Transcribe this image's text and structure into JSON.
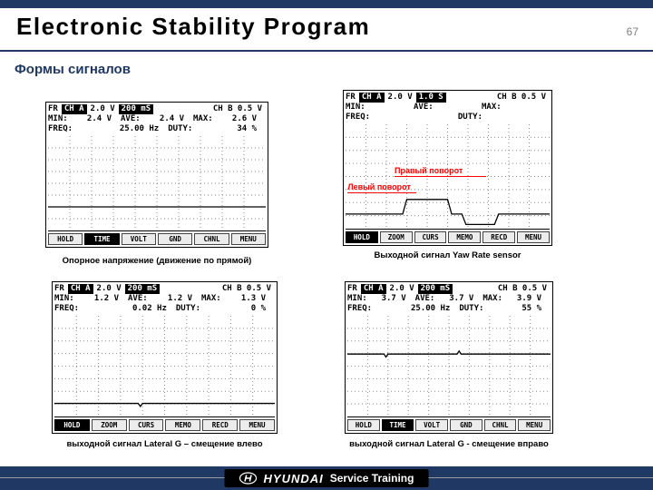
{
  "slide": {
    "title": "Electronic Stability Program",
    "page_number": "67",
    "section_title": "Формы сигналов"
  },
  "footer": {
    "brand": "HYUNDAI",
    "suffix": "Service Training"
  },
  "scope_labels": {
    "min": "MIN:",
    "ave": "AVE:",
    "max": "MAX:",
    "freq": "FREQ:",
    "duty": "DUTY:"
  },
  "scopes": [
    {
      "prefix": "FR",
      "ch_a": "CH A",
      "ch_a_scale": "2.0 V",
      "timebase": "200 mS",
      "ch_b": "CH B 0.5 V",
      "min": "2.4 V",
      "ave": "2.4 V",
      "max": "2.6 V",
      "freq": "25.00 Hz",
      "duty": "34 %",
      "buttons": [
        {
          "label": "HOLD",
          "active": false
        },
        {
          "label": "TIME",
          "active": true
        },
        {
          "label": "VOLT",
          "active": false
        },
        {
          "label": "GND",
          "active": false
        },
        {
          "label": "CHNL",
          "active": false
        },
        {
          "label": "MENU",
          "active": false
        }
      ],
      "caption": "Опорное напряжение (движение по прямой)",
      "waveform": [
        [
          0,
          75
        ],
        [
          100,
          75
        ]
      ]
    },
    {
      "prefix": "FR",
      "ch_a": "CH A",
      "ch_a_scale": "2.0 V",
      "timebase": "1.0 S",
      "ch_b": "CH B 0.5 V",
      "min": "",
      "ave": "",
      "max": "",
      "freq": "",
      "duty": "",
      "buttons": [
        {
          "label": "HOLD",
          "active": true
        },
        {
          "label": "ZOOM",
          "active": false
        },
        {
          "label": "CURS",
          "active": false
        },
        {
          "label": "MEMO",
          "active": false
        },
        {
          "label": "RECD",
          "active": false
        },
        {
          "label": "MENU",
          "active": false
        }
      ],
      "caption": "Выходной сигнал Yaw Rate sensor",
      "annotations": [
        {
          "text": "Правый поворот"
        },
        {
          "text": "Левый поворот"
        }
      ],
      "waveform": [
        [
          0,
          86
        ],
        [
          28,
          86
        ],
        [
          30,
          72
        ],
        [
          50,
          72
        ],
        [
          52,
          86
        ],
        [
          57,
          86
        ],
        [
          59,
          96
        ],
        [
          73,
          96
        ],
        [
          75,
          86
        ],
        [
          100,
          86
        ]
      ]
    },
    {
      "prefix": "FR",
      "ch_a": "CH A",
      "ch_a_scale": "2.0 V",
      "timebase": "200 mS",
      "ch_b": "CH B 0.5 V",
      "min": "1.2 V",
      "ave": "1.2 V",
      "max": "1.3 V",
      "freq": "0.02 Hz",
      "duty": "0 %",
      "buttons": [
        {
          "label": "HOLD",
          "active": true
        },
        {
          "label": "ZOOM",
          "active": false
        },
        {
          "label": "CURS",
          "active": false
        },
        {
          "label": "MEMO",
          "active": false
        },
        {
          "label": "RECD",
          "active": false
        },
        {
          "label": "MENU",
          "active": false
        }
      ],
      "caption": "выходной сигнал Lateral G – смещение влево",
      "waveform": [
        [
          0,
          87
        ],
        [
          38,
          87
        ],
        [
          39,
          90
        ],
        [
          40,
          87
        ],
        [
          100,
          87
        ]
      ]
    },
    {
      "prefix": "FR",
      "ch_a": "CH A",
      "ch_a_scale": "2.0 V",
      "timebase": "200 mS",
      "ch_b": "CH B 0.5 V",
      "min": "3.7 V",
      "ave": "3.7 V",
      "max": "3.9 V",
      "freq": "25.00 Hz",
      "duty": "55 %",
      "buttons": [
        {
          "label": "HOLD",
          "active": false
        },
        {
          "label": "TIME",
          "active": true
        },
        {
          "label": "VOLT",
          "active": false
        },
        {
          "label": "GND",
          "active": false
        },
        {
          "label": "CHNL",
          "active": false
        },
        {
          "label": "MENU",
          "active": false
        }
      ],
      "caption": "выходной сигнал Lateral G - смещение вправо",
      "waveform": [
        [
          0,
          38
        ],
        [
          18,
          38
        ],
        [
          19,
          41
        ],
        [
          20,
          38
        ],
        [
          54,
          38
        ],
        [
          55,
          35
        ],
        [
          56,
          38
        ],
        [
          100,
          38
        ]
      ]
    }
  ]
}
